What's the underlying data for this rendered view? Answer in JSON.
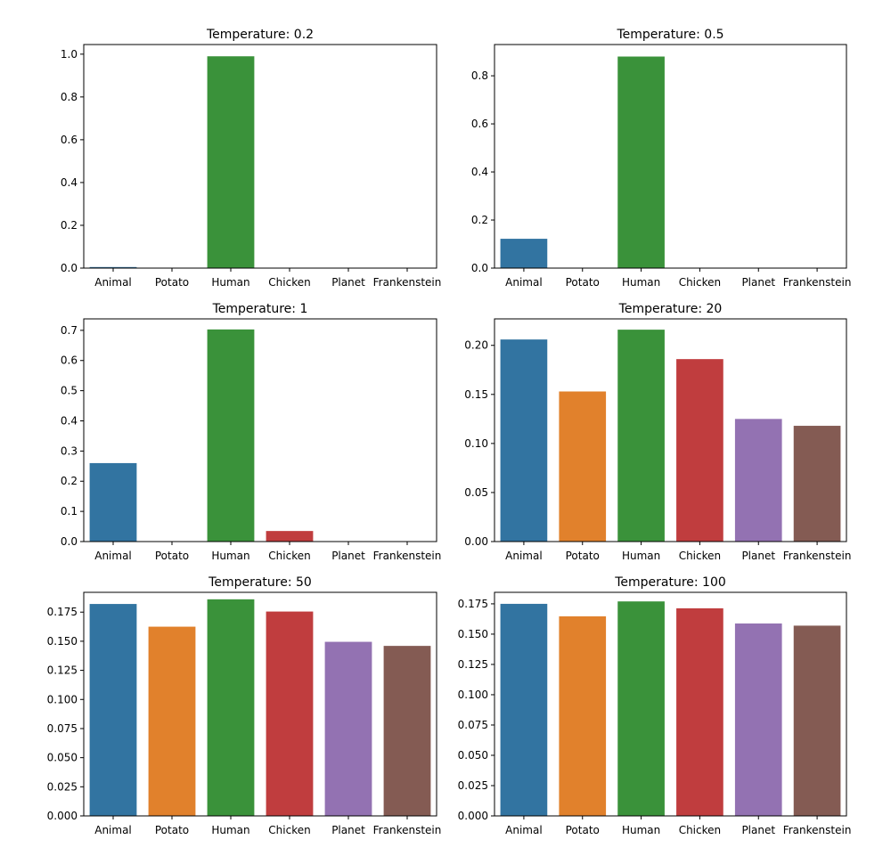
{
  "chart_data": [
    {
      "type": "bar",
      "title": "Temperature: 0.2",
      "categories": [
        "Animal",
        "Potato",
        "Human",
        "Chicken",
        "Planet",
        "Frankenstein"
      ],
      "values": [
        0.005,
        0.0,
        0.99,
        0.0,
        0.0,
        0.0
      ],
      "ylim": [
        0,
        1.045
      ],
      "yticks": [
        0,
        0.2,
        0.4,
        0.6,
        0.8,
        1.0
      ],
      "ytick_labels": [
        "0.0",
        "0.2",
        "0.4",
        "0.6",
        "0.8",
        "1.0"
      ],
      "grid": false
    },
    {
      "type": "bar",
      "title": "Temperature: 0.5",
      "categories": [
        "Animal",
        "Potato",
        "Human",
        "Chicken",
        "Planet",
        "Frankenstein"
      ],
      "values": [
        0.122,
        0.0,
        0.88,
        0.0,
        0.0,
        0.0
      ],
      "ylim": [
        0,
        0.93
      ],
      "yticks": [
        0,
        0.2,
        0.4,
        0.6,
        0.8
      ],
      "ytick_labels": [
        "0.0",
        "0.2",
        "0.4",
        "0.6",
        "0.8"
      ],
      "grid": false
    },
    {
      "type": "bar",
      "title": "Temperature: 1",
      "categories": [
        "Animal",
        "Potato",
        "Human",
        "Chicken",
        "Planet",
        "Frankenstein"
      ],
      "values": [
        0.26,
        0.0,
        0.703,
        0.035,
        0.0,
        0.0
      ],
      "ylim": [
        0,
        0.738
      ],
      "yticks": [
        0,
        0.1,
        0.2,
        0.3,
        0.4,
        0.5,
        0.6,
        0.7
      ],
      "ytick_labels": [
        "0.0",
        "0.1",
        "0.2",
        "0.3",
        "0.4",
        "0.5",
        "0.6",
        "0.7"
      ],
      "grid": false
    },
    {
      "type": "bar",
      "title": "Temperature: 20",
      "categories": [
        "Animal",
        "Potato",
        "Human",
        "Chicken",
        "Planet",
        "Frankenstein"
      ],
      "values": [
        0.206,
        0.153,
        0.216,
        0.186,
        0.125,
        0.118
      ],
      "ylim": [
        0,
        0.227
      ],
      "yticks": [
        0,
        0.05,
        0.1,
        0.15,
        0.2
      ],
      "ytick_labels": [
        "0.00",
        "0.05",
        "0.10",
        "0.15",
        "0.20"
      ],
      "grid": false
    },
    {
      "type": "bar",
      "title": "Temperature: 50",
      "categories": [
        "Animal",
        "Potato",
        "Human",
        "Chicken",
        "Planet",
        "Frankenstein"
      ],
      "values": [
        0.182,
        0.1625,
        0.186,
        0.1755,
        0.1495,
        0.146
      ],
      "ylim": [
        0,
        0.192
      ],
      "yticks": [
        0,
        0.025,
        0.05,
        0.075,
        0.1,
        0.125,
        0.15,
        0.175
      ],
      "ytick_labels": [
        "0.000",
        "0.025",
        "0.050",
        "0.075",
        "0.100",
        "0.125",
        "0.150",
        "0.175"
      ],
      "grid": false
    },
    {
      "type": "bar",
      "title": "Temperature: 100",
      "categories": [
        "Animal",
        "Potato",
        "Human",
        "Chicken",
        "Planet",
        "Frankenstein"
      ],
      "values": [
        0.175,
        0.1647,
        0.177,
        0.1713,
        0.1588,
        0.157
      ],
      "ylim": [
        0,
        0.1845
      ],
      "yticks": [
        0,
        0.025,
        0.05,
        0.075,
        0.1,
        0.125,
        0.15,
        0.175
      ],
      "ytick_labels": [
        "0.000",
        "0.025",
        "0.050",
        "0.075",
        "0.100",
        "0.125",
        "0.150",
        "0.175"
      ],
      "grid": false
    }
  ],
  "colors": [
    "#3274a1",
    "#e1812c",
    "#3a923a",
    "#c03d3e",
    "#9372b2",
    "#845b53"
  ]
}
